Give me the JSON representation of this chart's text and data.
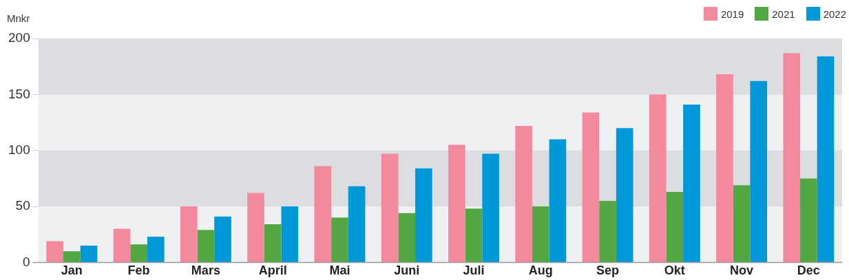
{
  "chart_data": {
    "type": "bar",
    "ylabel": "Mnkr",
    "categories": [
      "Jan",
      "Feb",
      "Mars",
      "April",
      "Mai",
      "Juni",
      "Juli",
      "Aug",
      "Sep",
      "Okt",
      "Nov",
      "Dec"
    ],
    "series": [
      {
        "name": "2019",
        "color": "#f4899d",
        "values": [
          19,
          30,
          50,
          62,
          86,
          97,
          105,
          122,
          134,
          150,
          168,
          187
        ]
      },
      {
        "name": "2021",
        "color": "#52a743",
        "values": [
          10,
          16,
          29,
          34,
          40,
          44,
          48,
          50,
          55,
          63,
          69,
          75
        ]
      },
      {
        "name": "2022",
        "color": "#0098d9",
        "values": [
          15,
          23,
          41,
          50,
          68,
          84,
          97,
          110,
          120,
          141,
          162,
          184
        ]
      }
    ],
    "ylim": [
      0,
      200
    ],
    "yticks": [
      0,
      50,
      100,
      150,
      200
    ],
    "grid": "y",
    "legend": "top right"
  }
}
